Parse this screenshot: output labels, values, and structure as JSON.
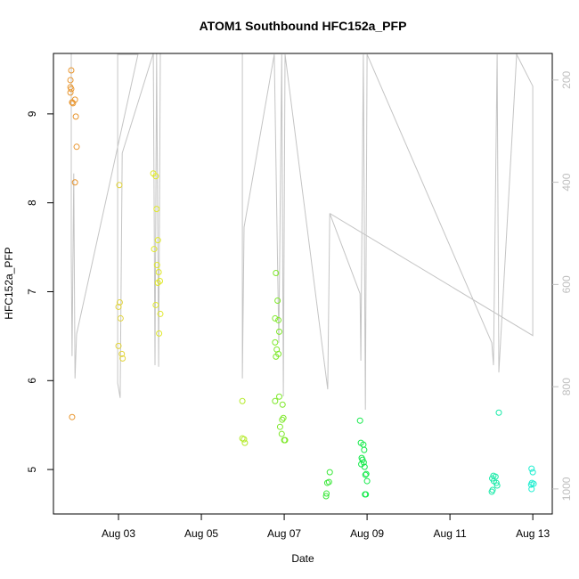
{
  "chart_data": {
    "type": "scatter",
    "title": "ATOM1 Southbound HFC152a_PFP",
    "x_label": "Date",
    "y_label": "HFC152a_PFP",
    "xlim": [
      1.43,
      13.47
    ],
    "xticks": [
      {
        "value": 3,
        "label": "Aug 03"
      },
      {
        "value": 5,
        "label": "Aug 05"
      },
      {
        "value": 7,
        "label": "Aug 07"
      },
      {
        "value": 9,
        "label": "Aug 09"
      },
      {
        "value": 11,
        "label": "Aug 11"
      },
      {
        "value": 13,
        "label": "Aug 13"
      }
    ],
    "ylim": [
      4.5,
      9.68
    ],
    "yticks": [
      5,
      6,
      7,
      8,
      9
    ],
    "y2lim": [
      1049,
      148
    ],
    "y2ticks": [
      200,
      400,
      600,
      800,
      1000
    ],
    "y2_color": "#bfbfbf",
    "series": [
      {
        "mode": "line",
        "axis": "y2",
        "color": "#c4c4c4",
        "x": [
          1.86,
          1.86,
          1.88,
          1.92,
          1.95,
          1.99,
          3.47,
          2.98,
          2.98,
          3.04,
          3.09,
          3.84,
          3.88,
          3.92,
          3.97,
          4.01,
          5.99,
          5.99,
          6.03,
          6.76,
          6.87,
          6.94,
          6.98,
          7.02,
          8.05,
          8.1,
          8.83,
          8.85,
          8.91,
          8.96,
          9.0,
          12.01,
          12.05,
          12.14,
          12.18,
          12.61,
          13.0,
          13.0,
          8.1
        ],
        "values": [
          148,
          540,
          740,
          383,
          784,
          697,
          150,
          150,
          793,
          822,
          343,
          148,
          758,
          148,
          761,
          148,
          148,
          784,
          488,
          150,
          714,
          150,
          819,
          150,
          805,
          461,
          618,
          749,
          150,
          845,
          150,
          714,
          758,
          150,
          772,
          150,
          212,
          700,
          461
        ]
      },
      {
        "mode": "points",
        "color": "#e8952e",
        "x": [
          1.86,
          1.84,
          1.84,
          1.86,
          1.84,
          1.88,
          1.9,
          1.95,
          1.97,
          1.99,
          1.95,
          1.88
        ],
        "values": [
          9.49,
          9.38,
          9.3,
          9.28,
          9.24,
          9.13,
          9.12,
          9.16,
          8.97,
          8.63,
          8.23,
          5.59
        ]
      },
      {
        "mode": "points",
        "color": "#e2d43a",
        "x": [
          3.02,
          3.03,
          3.0,
          3.05,
          3.0,
          3.08,
          3.1
        ],
        "values": [
          8.2,
          6.88,
          6.83,
          6.7,
          6.39,
          6.3,
          6.25
        ]
      },
      {
        "mode": "points",
        "color": "#e0e82a",
        "x": [
          3.84,
          3.9,
          3.92,
          3.95,
          3.86,
          3.93,
          3.97,
          4.0,
          3.95,
          3.9,
          4.01,
          3.98
        ],
        "values": [
          8.33,
          8.3,
          7.93,
          7.58,
          7.48,
          7.3,
          7.22,
          7.12,
          7.1,
          6.85,
          6.75,
          6.53
        ]
      },
      {
        "mode": "points",
        "color": "#b4ea2a",
        "x": [
          5.99,
          5.99,
          6.03,
          6.05
        ],
        "values": [
          5.77,
          5.35,
          5.34,
          5.3
        ]
      },
      {
        "mode": "points",
        "color": "#7ee82a",
        "x": [
          6.8,
          6.84,
          6.78,
          6.86,
          6.88,
          6.78,
          6.82,
          6.86,
          6.8,
          6.88,
          6.78,
          6.96,
          6.98,
          6.95,
          6.9,
          6.94,
          7.0,
          7.02
        ],
        "values": [
          7.21,
          6.9,
          6.7,
          6.68,
          6.55,
          6.43,
          6.35,
          6.3,
          6.27,
          5.82,
          5.77,
          5.73,
          5.58,
          5.56,
          5.48,
          5.4,
          5.33,
          5.33
        ]
      },
      {
        "mode": "points",
        "color": "#3be83a",
        "x": [
          8.1,
          8.08,
          8.04,
          8.02,
          8.01
        ],
        "values": [
          4.97,
          4.86,
          4.85,
          4.73,
          4.7
        ]
      },
      {
        "mode": "points",
        "color": "#14ea4a",
        "x": [
          8.83,
          8.85,
          8.91,
          8.93,
          8.87,
          8.89,
          8.92,
          8.86,
          8.94,
          8.98,
          8.96,
          9.0,
          8.95,
          8.97
        ],
        "values": [
          5.55,
          5.3,
          5.28,
          5.22,
          5.13,
          5.11,
          5.08,
          5.06,
          5.03,
          4.95,
          4.94,
          4.87,
          4.72,
          4.72
        ]
      },
      {
        "mode": "points",
        "color": "#18eaa8",
        "x": [
          12.18,
          12.05,
          12.1,
          12.02,
          12.06,
          12.12,
          12.14,
          12.03,
          12.01
        ],
        "values": [
          5.64,
          4.93,
          4.92,
          4.9,
          4.87,
          4.85,
          4.82,
          4.77,
          4.75
        ]
      },
      {
        "mode": "points",
        "color": "#1eeed0",
        "x": [
          12.97,
          13.0,
          12.98,
          13.02,
          12.96,
          12.97
        ],
        "values": [
          5.01,
          4.97,
          4.85,
          4.84,
          4.83,
          4.78
        ]
      }
    ]
  }
}
